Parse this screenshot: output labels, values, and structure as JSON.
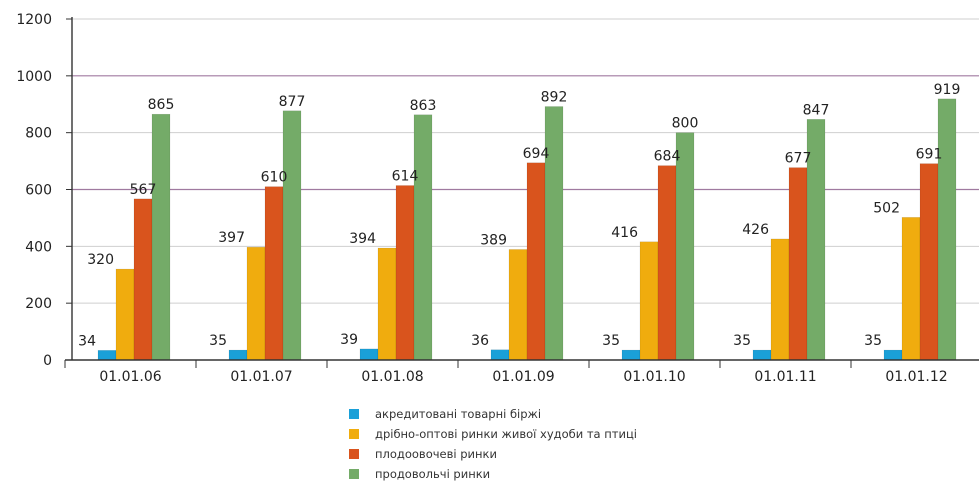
{
  "chart_data": {
    "type": "bar",
    "title": "",
    "xlabel": "",
    "ylabel": "",
    "ylim": [
      0,
      1200
    ],
    "yticks": [
      0,
      200,
      400,
      600,
      800,
      1000,
      1200
    ],
    "grid": true,
    "legend_position": "bottom",
    "categories": [
      "01.01.06",
      "01.01.07",
      "01.01.08",
      "01.01.09",
      "01.01.10",
      "01.01.11",
      "01.01.12"
    ],
    "series": [
      {
        "name": "акредитовані товарні біржі",
        "color": "#1aa0d8",
        "values": [
          34,
          35,
          39,
          36,
          35,
          35,
          35
        ]
      },
      {
        "name": "дрібно-оптові ринки живої худоби та птиці",
        "color": "#f0ac0e",
        "values": [
          320,
          397,
          394,
          389,
          416,
          426,
          502
        ]
      },
      {
        "name": "плодоовочеві ринки",
        "color": "#d9541d",
        "values": [
          567,
          610,
          614,
          694,
          684,
          677,
          691
        ]
      },
      {
        "name": "продовольчі ринки",
        "color": "#74ab68",
        "values": [
          865,
          877,
          863,
          892,
          800,
          847,
          919
        ]
      }
    ]
  }
}
